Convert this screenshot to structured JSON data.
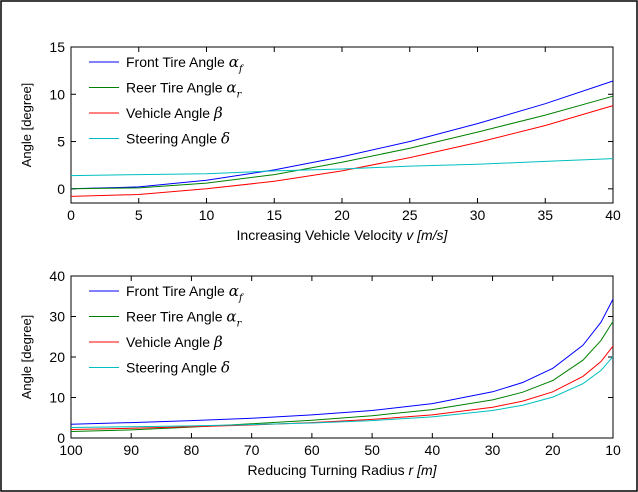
{
  "chart_data": [
    {
      "type": "line",
      "title": "",
      "xlabel": "Increasing Vehicle Velocity",
      "xlabel_var": "v",
      "xlabel_unit": "[m/s]",
      "ylabel": "Angle [degree]",
      "xlim": [
        0,
        40
      ],
      "ylim": [
        -1.5,
        15
      ],
      "x_reversed": false,
      "xticks": [
        0,
        5,
        10,
        15,
        20,
        25,
        30,
        35,
        40
      ],
      "yticks": [
        0,
        5,
        10,
        15
      ],
      "grid": false,
      "legend_position": "top-left",
      "x": [
        0,
        5,
        10,
        15,
        20,
        25,
        30,
        35,
        40
      ],
      "series": [
        {
          "name": "Front Tire Angle",
          "symbol": "α",
          "sub": "f",
          "color": "#0000ff",
          "values": [
            0.0,
            0.2,
            0.9,
            2.0,
            3.4,
            5.0,
            6.9,
            9.0,
            11.4
          ]
        },
        {
          "name": "Reer Tire Angle",
          "symbol": "α",
          "sub": "r",
          "color": "#008000",
          "values": [
            0.0,
            0.1,
            0.6,
            1.5,
            2.8,
            4.3,
            6.0,
            7.8,
            9.8
          ]
        },
        {
          "name": "Vehicle Angle",
          "symbol": "β",
          "sub": "",
          "color": "#ff0000",
          "values": [
            -0.8,
            -0.6,
            0.0,
            0.8,
            1.9,
            3.3,
            4.9,
            6.7,
            8.8
          ]
        },
        {
          "name": "Steering Angle",
          "symbol": "δ",
          "sub": "",
          "color": "#00bfbf",
          "values": [
            1.4,
            1.5,
            1.6,
            1.9,
            2.1,
            2.4,
            2.6,
            2.9,
            3.2
          ]
        }
      ]
    },
    {
      "type": "line",
      "title": "",
      "xlabel": "Reducing Turning Radius",
      "xlabel_var": "r",
      "xlabel_unit": "[m]",
      "ylabel": "Angle [degree]",
      "xlim": [
        100,
        10
      ],
      "ylim": [
        0,
        40
      ],
      "x_reversed": true,
      "xticks": [
        100,
        90,
        80,
        70,
        60,
        50,
        40,
        30,
        20,
        10
      ],
      "yticks": [
        0,
        10,
        20,
        30,
        40
      ],
      "grid": false,
      "legend_position": "top-left",
      "x": [
        100,
        90,
        80,
        70,
        60,
        50,
        40,
        30,
        25,
        20,
        15,
        12,
        10
      ],
      "series": [
        {
          "name": "Front Tire Angle",
          "symbol": "α",
          "sub": "f",
          "color": "#0000ff",
          "values": [
            3.4,
            3.8,
            4.3,
            4.9,
            5.7,
            6.8,
            8.5,
            11.4,
            13.7,
            17.2,
            22.9,
            28.6,
            34.3
          ]
        },
        {
          "name": "Reer Tire Angle",
          "symbol": "α",
          "sub": "r",
          "color": "#008000",
          "values": [
            1.6,
            2.0,
            2.7,
            3.5,
            4.4,
            5.5,
            7.0,
            9.4,
            11.3,
            14.2,
            19.2,
            24.1,
            28.8
          ]
        },
        {
          "name": "Vehicle Angle",
          "symbol": "β",
          "sub": "",
          "color": "#ff0000",
          "values": [
            2.1,
            2.4,
            2.8,
            3.2,
            3.8,
            4.6,
            5.7,
            7.6,
            9.1,
            11.4,
            15.2,
            18.9,
            22.7
          ]
        },
        {
          "name": "Steering Angle",
          "symbol": "δ",
          "sub": "",
          "color": "#00bfbf",
          "values": [
            2.6,
            2.8,
            3.0,
            3.3,
            3.7,
            4.3,
            5.2,
            6.8,
            8.1,
            10.1,
            13.4,
            16.7,
            20.1
          ]
        }
      ]
    }
  ]
}
